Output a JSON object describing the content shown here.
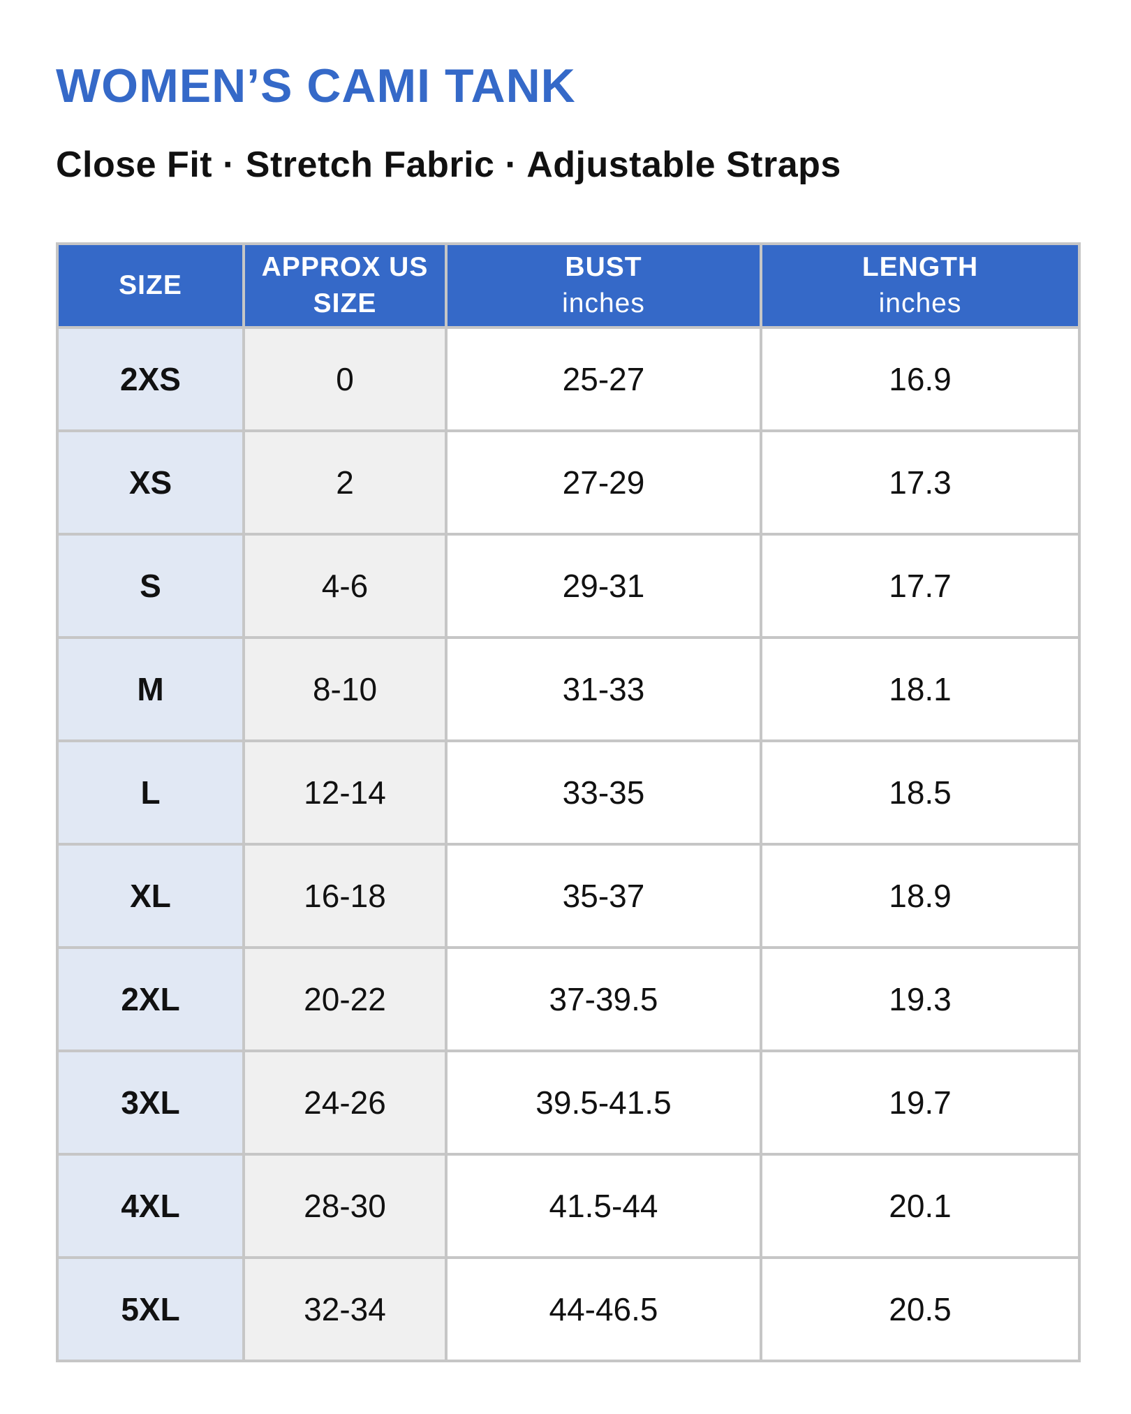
{
  "header": {
    "title": "WOMEN’S CAMI TANK",
    "subtitle": "Close Fit · Stretch Fabric · Adjustable Straps"
  },
  "table": {
    "columns": [
      {
        "title": "SIZE"
      },
      {
        "title": "APPROX US SIZE"
      },
      {
        "title": "BUST",
        "unit": "inches"
      },
      {
        "title": "LENGTH",
        "unit": "inches"
      }
    ],
    "rows": [
      [
        "2XS",
        "0",
        "25-27",
        "16.9"
      ],
      [
        "XS",
        "2",
        "27-29",
        "17.3"
      ],
      [
        "S",
        "4-6",
        "29-31",
        "17.7"
      ],
      [
        "M",
        "8-10",
        "31-33",
        "18.1"
      ],
      [
        "L",
        "12-14",
        "33-35",
        "18.5"
      ],
      [
        "XL",
        "16-18",
        "35-37",
        "18.9"
      ],
      [
        "2XL",
        "20-22",
        "37-39.5",
        "19.3"
      ],
      [
        "3XL",
        "24-26",
        "39.5-41.5",
        "19.7"
      ],
      [
        "4XL",
        "28-30",
        "41.5-44",
        "20.1"
      ],
      [
        "5XL",
        "32-34",
        "44-46.5",
        "20.5"
      ]
    ]
  }
}
